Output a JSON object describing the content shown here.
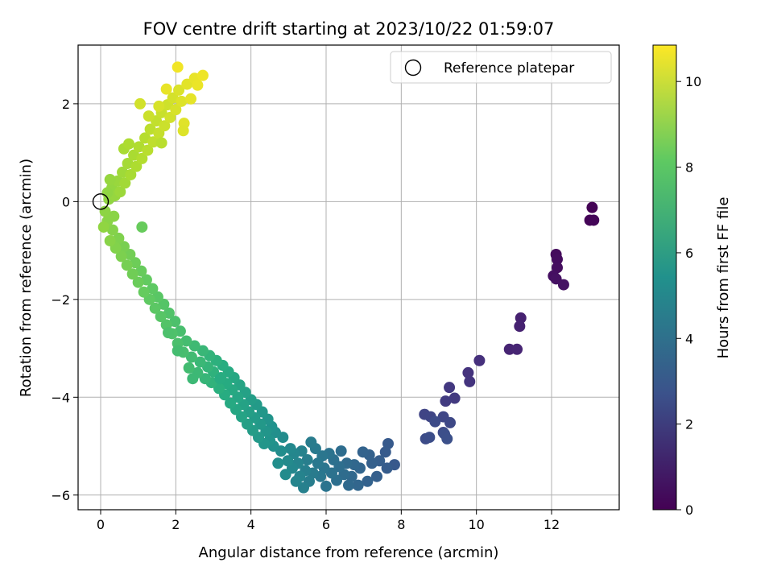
{
  "chart_data": {
    "type": "scatter",
    "title": "FOV centre drift starting at 2023/10/22 01:59:07",
    "xlabel": "Angular distance from reference (arcmin)",
    "ylabel": "Rotation from reference (arcmin)",
    "xlim": [
      -0.6,
      13.8
    ],
    "ylim": [
      -6.3,
      3.2
    ],
    "xticks": [
      0,
      2,
      4,
      6,
      8,
      10,
      12
    ],
    "yticks": [
      -6,
      -4,
      -2,
      0,
      2
    ],
    "grid": true,
    "legend": {
      "placement": "top-right",
      "entries": [
        "Reference platepar"
      ]
    },
    "reference_point": {
      "x": 0,
      "y": 0
    },
    "colorbar": {
      "label": "Hours from first FF file",
      "min": 0,
      "max": 10.85,
      "ticks": [
        0,
        2,
        4,
        6,
        8,
        10
      ],
      "colormap": "viridis"
    },
    "points": [
      [
        13.08,
        -0.12,
        0.05
      ],
      [
        13.02,
        -0.38,
        0.1
      ],
      [
        13.12,
        -0.38,
        0.15
      ],
      [
        12.12,
        -1.08,
        0.3
      ],
      [
        12.15,
        -1.18,
        0.35
      ],
      [
        12.15,
        -1.35,
        0.4
      ],
      [
        12.05,
        -1.52,
        0.45
      ],
      [
        12.12,
        -1.58,
        0.5
      ],
      [
        12.32,
        -1.7,
        0.55
      ],
      [
        11.18,
        -2.38,
        1.0
      ],
      [
        11.15,
        -2.55,
        1.05
      ],
      [
        10.88,
        -3.02,
        1.1
      ],
      [
        11.08,
        -3.02,
        1.15
      ],
      [
        10.08,
        -3.25,
        1.5
      ],
      [
        9.78,
        -3.5,
        1.6
      ],
      [
        9.82,
        -3.68,
        1.65
      ],
      [
        9.28,
        -3.8,
        1.8
      ],
      [
        9.42,
        -4.02,
        1.85
      ],
      [
        9.18,
        -4.08,
        1.9
      ],
      [
        8.62,
        -4.35,
        2.2
      ],
      [
        8.78,
        -4.4,
        2.25
      ],
      [
        9.12,
        -4.4,
        2.3
      ],
      [
        9.3,
        -4.52,
        2.35
      ],
      [
        9.12,
        -4.72,
        2.4
      ],
      [
        8.9,
        -4.5,
        2.45
      ],
      [
        8.65,
        -4.85,
        2.5
      ],
      [
        8.75,
        -4.82,
        2.55
      ],
      [
        9.15,
        -4.75,
        2.6
      ],
      [
        9.22,
        -4.85,
        2.65
      ],
      [
        7.82,
        -5.38,
        3.0
      ],
      [
        7.65,
        -4.95,
        3.05
      ],
      [
        7.58,
        -5.12,
        3.1
      ],
      [
        7.62,
        -5.45,
        3.15
      ],
      [
        7.42,
        -5.3,
        3.2
      ],
      [
        7.35,
        -5.62,
        3.25
      ],
      [
        7.22,
        -5.35,
        3.3
      ],
      [
        7.15,
        -5.18,
        3.35
      ],
      [
        7.1,
        -5.72,
        3.4
      ],
      [
        6.98,
        -5.12,
        3.45
      ],
      [
        6.9,
        -5.45,
        3.5
      ],
      [
        6.85,
        -5.8,
        3.55
      ],
      [
        6.75,
        -5.38,
        3.6
      ],
      [
        6.68,
        -5.62,
        3.65
      ],
      [
        6.6,
        -5.8,
        3.7
      ],
      [
        6.55,
        -5.35,
        3.75
      ],
      [
        6.48,
        -5.58,
        3.8
      ],
      [
        6.4,
        -5.1,
        3.85
      ],
      [
        6.35,
        -5.42,
        3.9
      ],
      [
        6.28,
        -5.7,
        3.95
      ],
      [
        6.2,
        -5.28,
        4.0
      ],
      [
        6.15,
        -5.55,
        4.05
      ],
      [
        6.08,
        -5.15,
        4.1
      ],
      [
        6.0,
        -5.82,
        4.15
      ],
      [
        5.95,
        -5.45,
        4.2
      ],
      [
        5.9,
        -5.2,
        4.25
      ],
      [
        5.85,
        -5.62,
        4.3
      ],
      [
        5.78,
        -5.35,
        4.35
      ],
      [
        5.72,
        -5.05,
        4.4
      ],
      [
        5.65,
        -5.55,
        4.45
      ],
      [
        5.6,
        -4.92,
        4.5
      ],
      [
        5.55,
        -5.72,
        4.55
      ],
      [
        5.5,
        -5.28,
        4.6
      ],
      [
        5.45,
        -5.5,
        4.65
      ],
      [
        5.4,
        -5.85,
        4.7
      ],
      [
        5.35,
        -5.1,
        4.75
      ],
      [
        5.3,
        -5.62,
        4.8
      ],
      [
        5.25,
        -5.35,
        4.85
      ],
      [
        5.2,
        -5.72,
        4.9
      ],
      [
        5.15,
        -5.15,
        4.95
      ],
      [
        5.1,
        -5.45,
        5.0
      ],
      [
        5.05,
        -5.05,
        5.05
      ],
      [
        4.98,
        -5.3,
        5.1
      ],
      [
        4.92,
        -5.58,
        5.15
      ],
      [
        4.85,
        -4.82,
        5.2
      ],
      [
        4.8,
        -5.1,
        5.25
      ],
      [
        4.72,
        -5.35,
        5.3
      ],
      [
        4.65,
        -4.72,
        5.35
      ],
      [
        4.6,
        -5.0,
        5.4
      ],
      [
        4.55,
        -4.6,
        5.45
      ],
      [
        4.5,
        -4.88,
        5.5
      ],
      [
        4.45,
        -4.45,
        5.55
      ],
      [
        4.4,
        -4.7,
        5.6
      ],
      [
        4.35,
        -4.95,
        5.65
      ],
      [
        4.3,
        -4.3,
        5.7
      ],
      [
        4.25,
        -4.55,
        5.75
      ],
      [
        4.2,
        -4.82,
        5.8
      ],
      [
        4.15,
        -4.15,
        5.85
      ],
      [
        4.1,
        -4.42,
        5.9
      ],
      [
        4.05,
        -4.68,
        5.95
      ],
      [
        4.0,
        -4.05,
        6.0
      ],
      [
        3.95,
        -4.3,
        6.05
      ],
      [
        3.9,
        -4.55,
        6.1
      ],
      [
        3.85,
        -3.9,
        6.15
      ],
      [
        3.8,
        -4.15,
        6.2
      ],
      [
        3.75,
        -4.4,
        6.25
      ],
      [
        3.7,
        -3.75,
        6.3
      ],
      [
        3.65,
        -4.0,
        6.35
      ],
      [
        3.6,
        -4.25,
        6.4
      ],
      [
        3.55,
        -3.6,
        6.45
      ],
      [
        3.5,
        -3.85,
        6.5
      ],
      [
        3.45,
        -4.12,
        6.55
      ],
      [
        3.4,
        -3.48,
        6.6
      ],
      [
        3.35,
        -3.72,
        6.65
      ],
      [
        3.3,
        -3.95,
        6.7
      ],
      [
        3.25,
        -3.35,
        6.75
      ],
      [
        3.2,
        -3.6,
        6.8
      ],
      [
        3.15,
        -3.82,
        6.85
      ],
      [
        3.08,
        -3.25,
        6.9
      ],
      [
        3.0,
        -3.48,
        6.95
      ],
      [
        2.95,
        -3.7,
        7.0
      ],
      [
        2.9,
        -3.15,
        7.05
      ],
      [
        2.85,
        -3.38,
        7.1
      ],
      [
        2.78,
        -3.62,
        7.15
      ],
      [
        2.72,
        -3.05,
        7.2
      ],
      [
        2.65,
        -3.28,
        7.25
      ],
      [
        2.58,
        -3.5,
        7.3
      ],
      [
        2.5,
        -2.95,
        7.35
      ],
      [
        2.42,
        -3.18,
        7.4
      ],
      [
        2.35,
        -3.4,
        7.45
      ],
      [
        2.28,
        -2.85,
        7.5
      ],
      [
        2.2,
        -3.08,
        7.55
      ],
      [
        2.12,
        -2.65,
        7.6
      ],
      [
        2.05,
        -2.9,
        7.65
      ],
      [
        1.98,
        -2.45,
        7.7
      ],
      [
        1.9,
        -2.7,
        7.75
      ],
      [
        1.82,
        -2.28,
        7.8
      ],
      [
        1.75,
        -2.52,
        7.85
      ],
      [
        1.68,
        -2.1,
        7.9
      ],
      [
        1.6,
        -2.35,
        7.95
      ],
      [
        1.52,
        -1.95,
        8.0
      ],
      [
        1.45,
        -2.18,
        8.05
      ],
      [
        1.38,
        -1.78,
        8.1
      ],
      [
        1.3,
        -2.0,
        8.15
      ],
      [
        1.22,
        -1.6,
        8.2
      ],
      [
        1.15,
        -1.85,
        8.25
      ],
      [
        1.08,
        -1.42,
        8.3
      ],
      [
        1.0,
        -1.65,
        8.35
      ],
      [
        0.92,
        -1.25,
        8.4
      ],
      [
        0.85,
        -1.48,
        8.45
      ],
      [
        0.78,
        -1.08,
        8.5
      ],
      [
        0.7,
        -1.3,
        8.55
      ],
      [
        0.62,
        -0.92,
        8.6
      ],
      [
        0.55,
        -1.12,
        8.65
      ],
      [
        0.48,
        -0.75,
        8.7
      ],
      [
        0.4,
        -0.95,
        8.75
      ],
      [
        0.32,
        -0.58,
        8.8
      ],
      [
        0.25,
        -0.8,
        8.85
      ],
      [
        0.18,
        -0.4,
        8.9
      ],
      [
        0.12,
        -0.2,
        8.95
      ],
      [
        0.08,
        -0.52,
        9.0
      ],
      [
        2.05,
        -3.05,
        7.5
      ],
      [
        1.8,
        -2.68,
        7.7
      ],
      [
        2.45,
        -3.62,
        7.3
      ],
      [
        3.18,
        -3.62,
        6.7
      ],
      [
        1.1,
        -0.52,
        8.3
      ],
      [
        0.35,
        -0.3,
        8.9
      ],
      [
        0.22,
        0.05,
        9.0
      ],
      [
        0.3,
        0.28,
        9.05
      ],
      [
        0.38,
        0.12,
        9.1
      ],
      [
        0.45,
        0.42,
        9.15
      ],
      [
        0.52,
        0.2,
        9.2
      ],
      [
        0.58,
        0.6,
        9.25
      ],
      [
        0.65,
        0.38,
        9.3
      ],
      [
        0.72,
        0.78,
        9.35
      ],
      [
        0.8,
        0.55,
        9.4
      ],
      [
        0.88,
        0.95,
        9.45
      ],
      [
        0.95,
        0.72,
        9.5
      ],
      [
        1.02,
        1.12,
        9.55
      ],
      [
        1.1,
        0.88,
        9.6
      ],
      [
        1.18,
        1.3,
        9.65
      ],
      [
        1.25,
        1.05,
        9.7
      ],
      [
        1.32,
        1.48,
        9.75
      ],
      [
        1.4,
        1.22,
        9.8
      ],
      [
        1.48,
        1.65,
        9.85
      ],
      [
        1.55,
        1.4,
        9.9
      ],
      [
        1.62,
        1.82,
        9.95
      ],
      [
        1.7,
        1.55,
        10.0
      ],
      [
        1.78,
        1.98,
        10.05
      ],
      [
        1.85,
        1.72,
        10.1
      ],
      [
        1.92,
        2.12,
        10.15
      ],
      [
        2.0,
        1.88,
        10.2
      ],
      [
        2.08,
        2.28,
        10.25
      ],
      [
        2.15,
        2.05,
        10.3
      ],
      [
        2.22,
        1.6,
        10.35
      ],
      [
        2.3,
        2.4,
        10.4
      ],
      [
        2.4,
        2.1,
        10.45
      ],
      [
        2.5,
        2.52,
        10.5
      ],
      [
        2.58,
        2.38,
        10.55
      ],
      [
        2.72,
        2.58,
        10.6
      ],
      [
        2.05,
        2.75,
        10.65
      ],
      [
        1.75,
        2.3,
        10.5
      ],
      [
        1.55,
        1.95,
        10.2
      ],
      [
        1.28,
        1.75,
        10.0
      ],
      [
        1.05,
        2.0,
        10.1
      ],
      [
        0.25,
        0.45,
        9.1
      ],
      [
        0.18,
        0.18,
        9.0
      ],
      [
        0.62,
        1.08,
        9.4
      ],
      [
        0.75,
        1.18,
        9.5
      ],
      [
        1.62,
        1.2,
        9.7
      ],
      [
        2.2,
        1.45,
        10.3
      ]
    ]
  }
}
